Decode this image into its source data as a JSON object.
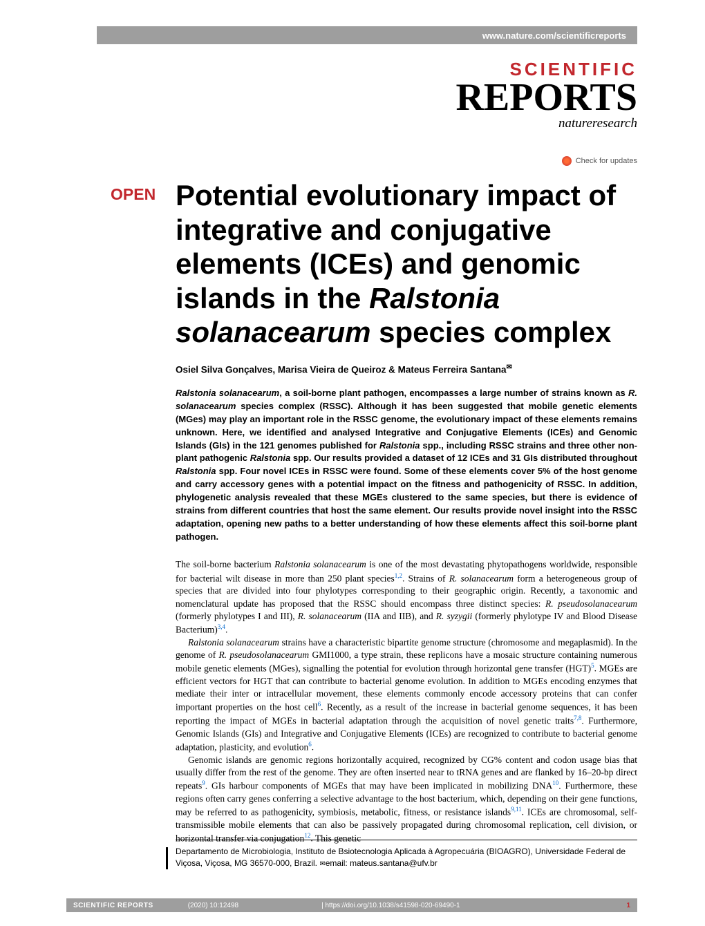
{
  "colors": {
    "accent_red": "#c2272d",
    "header_gray": "#9e9e9e",
    "ref_blue": "#0066cc",
    "background": "#ffffff",
    "text": "#000000",
    "check_text": "#555555"
  },
  "typography": {
    "title_fontsize": 42,
    "title_weight": "bold",
    "abstract_fontsize": 13,
    "abstract_weight": "bold",
    "body_fontsize": 13.5,
    "footer_fontsize": 10,
    "logo_scientific_fontsize": 26,
    "logo_reports_fontsize": 56,
    "open_badge_fontsize": 23
  },
  "header": {
    "url": "www.nature.com/scientificreports"
  },
  "logo": {
    "line1": "SCIENTIFIC",
    "line2": "REPORTS",
    "line3": "natureresearch"
  },
  "check_updates": "Check for updates",
  "open_badge": "OPEN",
  "title": {
    "plain1": "Potential evolutionary impact of integrative and conjugative elements (ICEs) and genomic islands in the ",
    "italic": "Ralstonia solanacearum",
    "plain2": " species complex"
  },
  "authors": "Osiel Silva Gonçalves, Marisa Vieira de Queiroz & Mateus Ferreira Santana",
  "abstract": {
    "part1_italic": "Ralstonia solanacearum",
    "part1": ", a soil-borne plant pathogen, encompasses a large number of strains known as ",
    "part2_italic": "R. solanacearum",
    "part2": " species complex (RSSC). Although it has been suggested that mobile genetic elements (MGes) may play an important role in the RSSC genome, the evolutionary impact of these elements remains unknown. Here, we identified and analysed Integrative and Conjugative Elements (ICEs) and Genomic Islands (GIs) in the 121 genomes published for ",
    "part3_italic": "Ralstonia",
    "part3": " spp., including RSSC strains and three other non-plant pathogenic ",
    "part4_italic": "Ralstonia",
    "part4": " spp. Our results provided a dataset of 12 ICEs and 31 GIs distributed throughout ",
    "part5_italic": "Ralstonia",
    "part5": " spp. Four novel ICEs in RSSC were found. Some of these elements cover 5% of the host genome and carry accessory genes with a potential impact on the fitness and pathogenicity of RSSC. In addition, phylogenetic analysis revealed that these MGEs clustered to the same species, but there is evidence of strains from different countries that host the same element. Our results provide novel insight into the RSSC adaptation, opening new paths to a better understanding of how these elements affect this soil-borne plant pathogen."
  },
  "body": {
    "p1_a": "The soil-borne bacterium ",
    "p1_italic1": "Ralstonia solanacearum",
    "p1_b": " is one of the most devastating phytopathogens worldwide, responsible for bacterial wilt disease in more than 250 plant species",
    "p1_ref1": "1,2",
    "p1_c": ". Strains of ",
    "p1_italic2": "R. solanacearum",
    "p1_d": " form a heterogeneous group of species that are divided into four phylotypes corresponding to their geographic origin. Recently, a taxonomic and nomenclatural update has proposed that the RSSC should encompass three distinct species: ",
    "p1_italic3": "R. pseudosolanacearum",
    "p1_e": " (formerly phylotypes I and III), ",
    "p1_italic4": "R. solanacearum",
    "p1_f": " (IIA and IIB), and ",
    "p1_italic5": "R. syzygii",
    "p1_g": " (formerly phylotype IV and Blood Disease Bacterium)",
    "p1_ref2": "3,4",
    "p1_h": ".",
    "p2_italic1": "Ralstonia solanacearum",
    "p2_a": " strains have a characteristic bipartite genome structure (chromosome and megaplasmid). In the genome of ",
    "p2_italic2": "R. pseudosolanacearum",
    "p2_b": " GMI1000, a type strain, these replicons have a mosaic structure containing numerous mobile genetic elements (MGes), signalling the potential for evolution through horizontal gene transfer (HGT)",
    "p2_ref1": "5",
    "p2_c": ". MGEs are efficient vectors for HGT that can contribute to bacterial genome evolution. In addition to MGEs encoding enzymes that mediate their inter or intracellular movement, these elements commonly encode accessory proteins that can confer important properties on the host cell",
    "p2_ref2": "6",
    "p2_d": ". Recently, as a result of the increase in bacterial genome sequences, it has been reporting the impact of MGEs in bacterial adaptation through the acquisition of novel genetic traits",
    "p2_ref3": "7,8",
    "p2_e": ". Furthermore, Genomic Islands (GIs) and Integrative and Conjugative Elements (ICEs) are recognized to contribute to bacterial genome adaptation, plasticity, and evolution",
    "p2_ref4": "6",
    "p2_f": ".",
    "p3_a": "Genomic islands are genomic regions horizontally acquired, recognized by CG% content and codon usage bias that usually differ from the rest of the genome. They are often inserted near to tRNA genes and are flanked by 16–20-bp direct repeats",
    "p3_ref1": "9",
    "p3_b": ". GIs harbour components of MGEs that may have been implicated in mobilizing DNA",
    "p3_ref2": "10",
    "p3_c": ". Furthermore, these regions often carry genes conferring a selective advantage to the host bacterium, which, depending on their gene functions, may be referred to as pathogenicity, symbiosis, metabolic, fitness, or resistance islands",
    "p3_ref3": "9,11",
    "p3_d": ". ICEs are chromosomal, self-transmissible mobile elements that can also be passively propagated during chromosomal replication, cell division, or horizontal transfer via conjugation",
    "p3_ref4": "12",
    "p3_e": ". This genetic"
  },
  "affiliation": {
    "text": "Departamento de Microbiologia, Instituto de Bsiotecnologia Aplicada à Agropecuária (BIOAGRO), Universidade Federal de Viçosa, Viçosa, MG 36570-000, Brazil. ",
    "email_label": "email: ",
    "email": "mateus.santana@ufv.br"
  },
  "footer": {
    "journal": "SCIENTIFIC REPORTS",
    "citation": "(2020) 10:12498",
    "doi": "| https://doi.org/10.1038/s41598-020-69490-1",
    "page": "1"
  }
}
